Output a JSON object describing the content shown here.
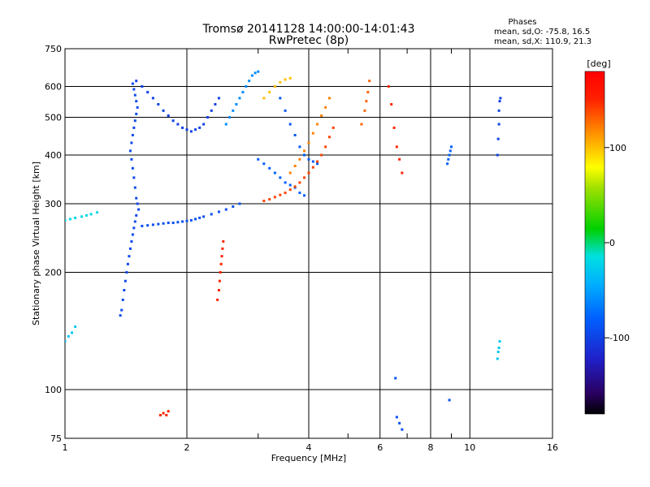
{
  "chart_data": {
    "type": "scatter",
    "title": "Tromsø 20141128 14:00:00-14:01:43",
    "subtitle": "RwPretec (8p)",
    "xlabel": "Frequency [MHz]",
    "ylabel": "Stationary phase Virtual Height [km]",
    "x_scale": "log",
    "y_scale": "log",
    "xlim": [
      1,
      16
    ],
    "ylim": [
      75,
      750
    ],
    "x_ticks": [
      "1",
      "2",
      "4",
      "6",
      "8",
      "10",
      "16"
    ],
    "x_tick_values": [
      1,
      2,
      4,
      6,
      8,
      10,
      16
    ],
    "y_ticks": [
      "75",
      "100",
      "200",
      "300",
      "400",
      "500",
      "600",
      "750"
    ],
    "y_tick_values": [
      75,
      100,
      200,
      300,
      400,
      500,
      600,
      750
    ],
    "x_minor_gridlines": [
      3,
      5,
      7,
      9
    ],
    "grid": true,
    "stats": {
      "heading": "Phases",
      "line_o": "mean, sd,O: -75.8, 16.5",
      "line_x": "mean, sd,X: 110.9, 21.3"
    },
    "colorbar": {
      "label": "[deg]",
      "range": [
        -180,
        180
      ],
      "ticks": [
        "100",
        "0",
        "-100"
      ],
      "tick_values": [
        100,
        0,
        -100
      ],
      "colormap": "rainbow"
    },
    "series": [
      {
        "phase": -95,
        "x": [
          1.47,
          1.48,
          1.49,
          1.5,
          1.51,
          1.5,
          1.49,
          1.48,
          1.47,
          1.46,
          1.45,
          1.46,
          1.47,
          1.48,
          1.49,
          1.5,
          1.51,
          1.52,
          1.5,
          1.49,
          1.48,
          1.47,
          1.46,
          1.45,
          1.44,
          1.43,
          1.42,
          1.41,
          1.4,
          1.39,
          1.38,
          1.37
        ],
        "y": [
          610,
          590,
          570,
          550,
          530,
          510,
          490,
          470,
          450,
          430,
          410,
          390,
          370,
          350,
          330,
          310,
          300,
          290,
          280,
          270,
          260,
          250,
          240,
          230,
          220,
          210,
          200,
          190,
          180,
          170,
          160,
          155
        ]
      },
      {
        "phase": -90,
        "x": [
          1.55,
          1.6,
          1.65,
          1.7,
          1.75,
          1.8,
          1.85,
          1.9,
          1.95,
          2.0,
          2.05,
          2.1,
          2.15,
          2.2,
          2.3,
          2.4,
          2.5,
          2.6,
          2.7
        ],
        "y": [
          263,
          264,
          265,
          266,
          267,
          268,
          268,
          269,
          270,
          271,
          272,
          274,
          276,
          278,
          282,
          286,
          290,
          295,
          300
        ]
      },
      {
        "phase": -100,
        "x": [
          1.5,
          1.55,
          1.6,
          1.65,
          1.7,
          1.75,
          1.8,
          1.85,
          1.9,
          1.95,
          2.0,
          2.05,
          2.1,
          2.15,
          2.2,
          2.25,
          2.3,
          2.35,
          2.4
        ],
        "y": [
          620,
          600,
          580,
          560,
          540,
          520,
          505,
          490,
          480,
          470,
          465,
          460,
          465,
          470,
          480,
          500,
          520,
          540,
          560
        ]
      },
      {
        "phase": -60,
        "x": [
          2.5,
          2.55,
          2.6,
          2.65,
          2.7,
          2.75,
          2.8,
          2.85,
          2.9,
          2.95,
          3.0
        ],
        "y": [
          480,
          500,
          520,
          540,
          560,
          580,
          600,
          620,
          640,
          650,
          655
        ]
      },
      {
        "phase": -80,
        "x": [
          3.0,
          3.1,
          3.2,
          3.3,
          3.4,
          3.5,
          3.6,
          3.7,
          3.8,
          3.9
        ],
        "y": [
          390,
          380,
          370,
          360,
          350,
          340,
          335,
          330,
          320,
          315
        ]
      },
      {
        "phase": -85,
        "x": [
          3.3,
          3.4,
          3.5,
          3.6,
          3.7,
          3.8,
          3.9,
          4.0,
          4.1,
          4.2
        ],
        "y": [
          600,
          560,
          520,
          480,
          450,
          420,
          400,
          390,
          385,
          380
        ]
      },
      {
        "phase": 140,
        "x": [
          3.1,
          3.2,
          3.3,
          3.4,
          3.5,
          3.6,
          3.7,
          3.8,
          3.9,
          4.0,
          4.1,
          4.2,
          4.3,
          4.4,
          4.5,
          4.6
        ],
        "y": [
          305,
          308,
          312,
          316,
          320,
          326,
          332,
          340,
          350,
          360,
          372,
          385,
          400,
          420,
          445,
          470
        ]
      },
      {
        "phase": 120,
        "x": [
          3.6,
          3.7,
          3.8,
          3.9,
          4.0,
          4.1,
          4.2,
          4.3,
          4.4,
          4.5
        ],
        "y": [
          360,
          375,
          390,
          410,
          430,
          455,
          480,
          505,
          530,
          560
        ]
      },
      {
        "phase": 100,
        "x": [
          3.1,
          3.2,
          3.3,
          3.4,
          3.5,
          3.6
        ],
        "y": [
          560,
          580,
          600,
          615,
          625,
          630
        ]
      },
      {
        "phase": 130,
        "x": [
          5.4,
          5.5,
          5.55,
          5.6,
          5.65
        ],
        "y": [
          480,
          520,
          550,
          580,
          620
        ]
      },
      {
        "phase": -20,
        "x": [
          1.0,
          1.03,
          1.06,
          1.1,
          1.13,
          1.16,
          1.2
        ],
        "y": [
          272,
          274,
          276,
          278,
          280,
          282,
          285
        ]
      },
      {
        "phase": -30,
        "x": [
          1.0,
          1.02,
          1.04,
          1.06
        ],
        "y": [
          133,
          137,
          140,
          145
        ]
      },
      {
        "phase": 150,
        "x": [
          2.38,
          2.4,
          2.41,
          2.42,
          2.43,
          2.44,
          2.45,
          2.46
        ],
        "y": [
          170,
          180,
          190,
          200,
          210,
          220,
          230,
          240
        ]
      },
      {
        "phase": 150,
        "x": [
          1.72,
          1.75,
          1.78,
          1.8
        ],
        "y": [
          86,
          87,
          86,
          88
        ]
      },
      {
        "phase": -80,
        "x": [
          8.8,
          8.85,
          8.9,
          8.95,
          9.0
        ],
        "y": [
          380,
          390,
          400,
          410,
          420
        ]
      },
      {
        "phase": -100,
        "x": [
          11.7,
          11.75,
          11.8,
          11.8,
          11.85,
          11.9
        ],
        "y": [
          400,
          440,
          480,
          520,
          550,
          560
        ]
      },
      {
        "phase": -30,
        "x": [
          11.7,
          11.75,
          11.8,
          11.85
        ],
        "y": [
          120,
          125,
          128,
          133
        ]
      },
      {
        "phase": 150,
        "x": [
          6.3,
          6.4,
          6.5,
          6.6,
          6.7,
          6.8
        ],
        "y": [
          600,
          540,
          470,
          420,
          390,
          360
        ]
      },
      {
        "phase": -90,
        "x": [
          6.55,
          6.6,
          6.7,
          6.8,
          8.9
        ],
        "y": [
          107,
          85,
          82,
          79,
          94
        ]
      }
    ]
  }
}
